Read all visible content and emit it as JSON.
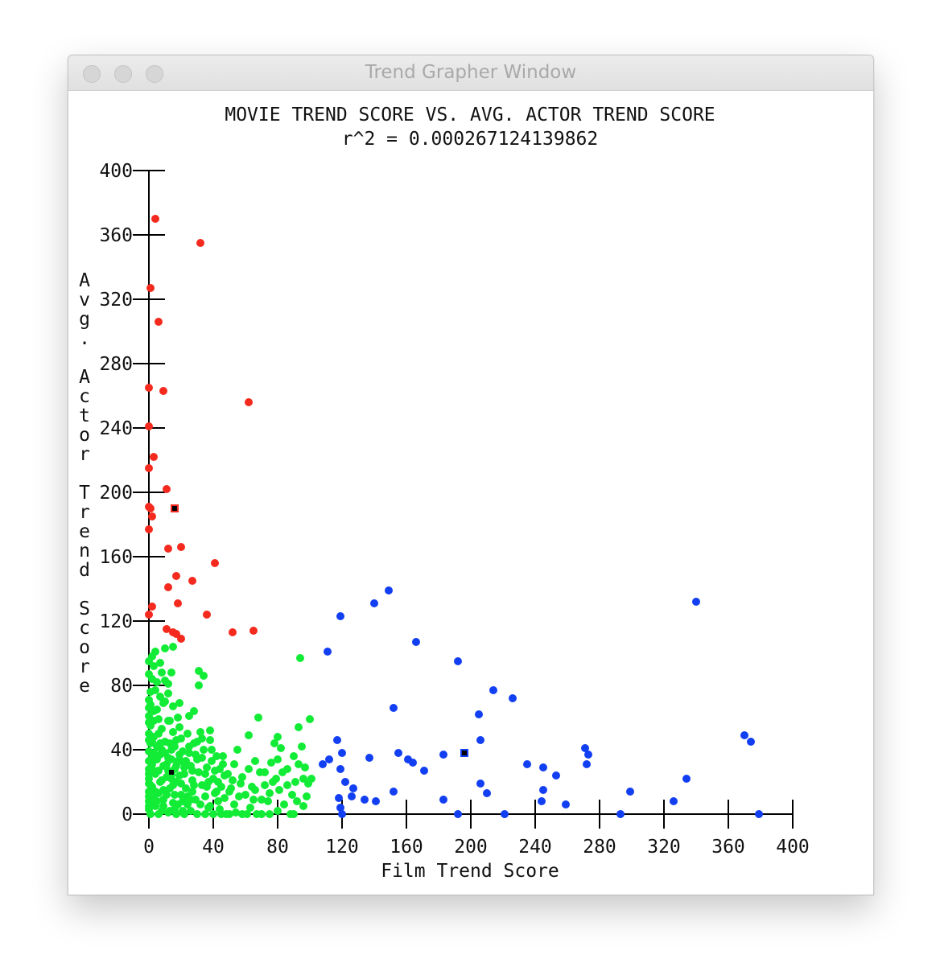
{
  "window": {
    "title": "Trend Grapher Window"
  },
  "chart_data": {
    "type": "scatter",
    "title": "MOVIE TREND SCORE VS. AVG. ACTOR TREND SCORE",
    "subtitle": "r^2 = 0.000267124139862",
    "xlabel": "Film Trend Score",
    "ylabel": "Avg. Actor Trend Score",
    "xlim": [
      0,
      400
    ],
    "ylim": [
      0,
      400
    ],
    "xticks": [
      "0",
      "40",
      "80",
      "120",
      "160",
      "200",
      "240",
      "280",
      "320",
      "360",
      "400"
    ],
    "yticks": [
      "0",
      "40",
      "80",
      "120",
      "160",
      "200",
      "240",
      "280",
      "320",
      "360",
      "400"
    ],
    "colors": {
      "red": "#f42a1e",
      "green": "#12ec36",
      "blue": "#123ff2"
    },
    "series": [
      {
        "color": "red",
        "points": [
          [
            4,
            370
          ],
          [
            32,
            355
          ],
          [
            1,
            327
          ],
          [
            6,
            306
          ],
          [
            9,
            263
          ],
          [
            0,
            265
          ],
          [
            62,
            256
          ],
          [
            0,
            241
          ],
          [
            3,
            222
          ],
          [
            0,
            215
          ],
          [
            11,
            202
          ],
          [
            0,
            191
          ],
          [
            1,
            190
          ],
          [
            2,
            185
          ],
          [
            0,
            177
          ],
          [
            20,
            166
          ],
          [
            12,
            165
          ],
          [
            41,
            156
          ],
          [
            17,
            148
          ],
          [
            27,
            145
          ],
          [
            12,
            141
          ],
          [
            18,
            131
          ],
          [
            2,
            129
          ],
          [
            0,
            124
          ],
          [
            36,
            124
          ],
          [
            11,
            115
          ],
          [
            15,
            113
          ],
          [
            17,
            112
          ],
          [
            20,
            109
          ],
          [
            52,
            113
          ],
          [
            65,
            114
          ]
        ]
      },
      {
        "color": "blue",
        "points": [
          [
            149,
            139
          ],
          [
            140,
            131
          ],
          [
            340,
            132
          ],
          [
            119,
            123
          ],
          [
            166,
            107
          ],
          [
            111,
            101
          ],
          [
            192,
            95
          ],
          [
            214,
            77
          ],
          [
            226,
            72
          ],
          [
            152,
            66
          ],
          [
            205,
            62
          ],
          [
            117,
            46
          ],
          [
            206,
            46
          ],
          [
            370,
            49
          ],
          [
            374,
            45
          ],
          [
            271,
            41
          ],
          [
            273,
            37
          ],
          [
            272,
            31
          ],
          [
            120,
            38
          ],
          [
            155,
            38
          ],
          [
            161,
            34
          ],
          [
            164,
            32
          ],
          [
            183,
            37
          ],
          [
            137,
            35
          ],
          [
            112,
            34
          ],
          [
            108,
            31
          ],
          [
            119,
            28
          ],
          [
            171,
            27
          ],
          [
            235,
            31
          ],
          [
            245,
            29
          ],
          [
            253,
            24
          ],
          [
            122,
            20
          ],
          [
            206,
            19
          ],
          [
            127,
            16
          ],
          [
            245,
            15
          ],
          [
            210,
            13
          ],
          [
            152,
            14
          ],
          [
            299,
            14
          ],
          [
            334,
            22
          ],
          [
            126,
            11
          ],
          [
            118,
            10
          ],
          [
            134,
            9
          ],
          [
            141,
            8
          ],
          [
            183,
            9
          ],
          [
            244,
            8
          ],
          [
            259,
            6
          ],
          [
            326,
            8
          ],
          [
            119,
            4
          ],
          [
            120,
            0
          ],
          [
            192,
            0
          ],
          [
            221,
            0
          ],
          [
            293,
            0
          ],
          [
            379,
            0
          ]
        ]
      },
      {
        "color": "green",
        "points": [
          [
            0,
            95
          ],
          [
            2,
            98
          ],
          [
            4,
            101
          ],
          [
            10,
            103
          ],
          [
            15,
            104
          ],
          [
            3,
            92
          ],
          [
            8,
            88
          ],
          [
            14,
            88
          ],
          [
            0,
            87
          ],
          [
            5,
            82
          ],
          [
            12,
            81
          ],
          [
            1,
            76
          ],
          [
            7,
            73
          ],
          [
            0,
            71
          ],
          [
            10,
            70
          ],
          [
            15,
            67
          ],
          [
            3,
            64
          ],
          [
            0,
            61
          ],
          [
            6,
            59
          ],
          [
            12,
            58
          ],
          [
            18,
            60
          ],
          [
            25,
            61
          ],
          [
            1,
            55
          ],
          [
            8,
            53
          ],
          [
            15,
            51
          ],
          [
            3,
            48
          ],
          [
            0,
            46
          ],
          [
            10,
            45
          ],
          [
            20,
            47
          ],
          [
            5,
            42
          ],
          [
            14,
            40
          ],
          [
            0,
            39
          ],
          [
            7,
            37
          ],
          [
            12,
            35
          ],
          [
            18,
            33
          ],
          [
            2,
            31
          ],
          [
            9,
            30
          ],
          [
            0,
            28
          ],
          [
            16,
            28
          ],
          [
            22,
            29
          ],
          [
            4,
            25
          ],
          [
            11,
            23
          ],
          [
            0,
            22
          ],
          [
            7,
            20
          ],
          [
            17,
            20
          ],
          [
            2,
            17
          ],
          [
            13,
            16
          ],
          [
            0,
            14
          ],
          [
            6,
            13
          ],
          [
            20,
            12
          ],
          [
            3,
            10
          ],
          [
            9,
            9
          ],
          [
            0,
            8
          ],
          [
            15,
            7
          ],
          [
            4,
            5
          ],
          [
            0,
            3
          ],
          [
            8,
            2
          ],
          [
            12,
            1
          ],
          [
            1,
            0
          ],
          [
            6,
            0
          ],
          [
            17,
            0
          ],
          [
            22,
            0
          ],
          [
            0,
            50
          ],
          [
            1,
            44
          ],
          [
            2,
            36
          ],
          [
            3,
            27
          ],
          [
            1,
            18
          ],
          [
            0,
            11
          ],
          [
            2,
            6
          ],
          [
            5,
            34
          ],
          [
            9,
            15
          ],
          [
            13,
            44
          ],
          [
            16,
            12
          ],
          [
            19,
            24
          ],
          [
            21,
            39
          ],
          [
            23,
            16
          ],
          [
            24,
            6
          ],
          [
            26,
            30
          ],
          [
            27,
            21
          ],
          [
            28,
            44
          ],
          [
            29,
            9
          ],
          [
            30,
            34
          ],
          [
            31,
            26
          ],
          [
            32,
            51
          ],
          [
            33,
            18
          ],
          [
            34,
            40
          ],
          [
            35,
            11
          ],
          [
            36,
            29
          ],
          [
            37,
            4
          ],
          [
            38,
            46
          ],
          [
            39,
            33
          ],
          [
            40,
            22
          ],
          [
            41,
            13
          ],
          [
            42,
            36
          ],
          [
            43,
            8
          ],
          [
            44,
            28
          ],
          [
            45,
            17
          ],
          [
            46,
            31
          ],
          [
            47,
            24
          ],
          [
            48,
            0
          ],
          [
            50,
            14
          ],
          [
            52,
            21
          ],
          [
            53,
            6
          ],
          [
            55,
            40
          ],
          [
            57,
            19
          ],
          [
            58,
            0
          ],
          [
            60,
            12
          ],
          [
            62,
            49
          ],
          [
            63,
            4
          ],
          [
            65,
            9
          ],
          [
            66,
            15
          ],
          [
            68,
            60
          ],
          [
            69,
            26
          ],
          [
            70,
            0
          ],
          [
            72,
            18
          ],
          [
            74,
            8
          ],
          [
            76,
            32
          ],
          [
            78,
            44
          ],
          [
            79,
            22
          ],
          [
            80,
            48
          ],
          [
            81,
            15
          ],
          [
            82,
            41
          ],
          [
            84,
            6
          ],
          [
            86,
            28
          ],
          [
            88,
            0
          ],
          [
            90,
            36
          ],
          [
            91,
            20
          ],
          [
            92,
            8
          ],
          [
            93,
            54
          ],
          [
            94,
            97
          ],
          [
            96,
            22
          ],
          [
            98,
            11
          ],
          [
            100,
            59
          ],
          [
            101,
            22
          ],
          [
            9,
            69
          ],
          [
            19,
            69
          ],
          [
            31,
            89
          ],
          [
            34,
            86
          ],
          [
            31,
            80
          ],
          [
            28,
            64
          ],
          [
            0,
            66
          ],
          [
            3,
            58
          ],
          [
            6,
            50
          ],
          [
            8,
            40
          ],
          [
            11,
            31
          ],
          [
            14,
            22
          ],
          [
            16,
            3
          ],
          [
            19,
            54
          ],
          [
            21,
            8
          ],
          [
            24,
            50
          ],
          [
            26,
            2
          ],
          [
            27,
            14
          ],
          [
            29,
            37
          ],
          [
            30,
            0
          ],
          [
            35,
            0
          ],
          [
            37,
            20
          ],
          [
            40,
            0
          ],
          [
            42,
            14
          ],
          [
            45,
            0
          ],
          [
            50,
            0
          ],
          [
            54,
            1
          ],
          [
            61,
            0
          ],
          [
            67,
            0
          ],
          [
            75,
            0
          ],
          [
            80,
            2
          ],
          [
            90,
            0
          ],
          [
            96,
            5
          ],
          [
            13,
            58
          ],
          [
            5,
            65
          ],
          [
            17,
            46
          ],
          [
            20,
            33
          ],
          [
            25,
            38
          ],
          [
            33,
            47
          ],
          [
            38,
            52
          ],
          [
            12,
            75
          ],
          [
            10,
            83
          ],
          [
            7,
            94
          ],
          [
            4,
            77
          ],
          [
            2,
            84
          ],
          [
            1,
            68
          ],
          [
            0,
            57
          ],
          [
            0,
            33
          ],
          [
            0,
            25
          ],
          [
            0,
            19
          ],
          [
            0,
            5
          ],
          [
            2,
            45
          ],
          [
            3,
            38
          ],
          [
            4,
            14
          ],
          [
            5,
            8
          ],
          [
            6,
            27
          ],
          [
            7,
            44
          ],
          [
            8,
            21
          ],
          [
            9,
            5
          ],
          [
            10,
            38
          ],
          [
            11,
            12
          ],
          [
            12,
            27
          ],
          [
            13,
            2
          ],
          [
            14,
            34
          ],
          [
            15,
            18
          ],
          [
            16,
            42
          ],
          [
            17,
            30
          ],
          [
            18,
            6
          ],
          [
            19,
            37
          ],
          [
            20,
            19
          ],
          [
            21,
            2
          ],
          [
            22,
            25
          ],
          [
            23,
            33
          ],
          [
            24,
            11
          ],
          [
            25,
            42
          ],
          [
            26,
            9
          ],
          [
            27,
            27
          ],
          [
            28,
            18
          ],
          [
            30,
            45
          ],
          [
            32,
            6
          ],
          [
            33,
            35
          ],
          [
            35,
            25
          ],
          [
            36,
            17
          ],
          [
            38,
            5
          ],
          [
            39,
            40
          ],
          [
            41,
            27
          ],
          [
            43,
            20
          ],
          [
            44,
            3
          ],
          [
            46,
            36
          ],
          [
            47,
            10
          ],
          [
            49,
            25
          ],
          [
            51,
            16
          ],
          [
            53,
            31
          ],
          [
            56,
            11
          ],
          [
            58,
            23
          ],
          [
            62,
            28
          ],
          [
            64,
            17
          ],
          [
            66,
            33
          ],
          [
            70,
            9
          ],
          [
            72,
            26
          ],
          [
            75,
            13
          ],
          [
            77,
            20
          ],
          [
            80,
            34
          ],
          [
            83,
            26
          ],
          [
            86,
            18
          ],
          [
            89,
            12
          ],
          [
            93,
            31
          ],
          [
            95,
            42
          ],
          [
            97,
            29
          ],
          [
            99,
            19
          ]
        ]
      }
    ],
    "highlight_markers": [
      {
        "color": "red",
        "x": 16,
        "y": 190
      },
      {
        "color": "green",
        "x": 14,
        "y": 26
      },
      {
        "color": "blue",
        "x": 196,
        "y": 38
      }
    ]
  }
}
